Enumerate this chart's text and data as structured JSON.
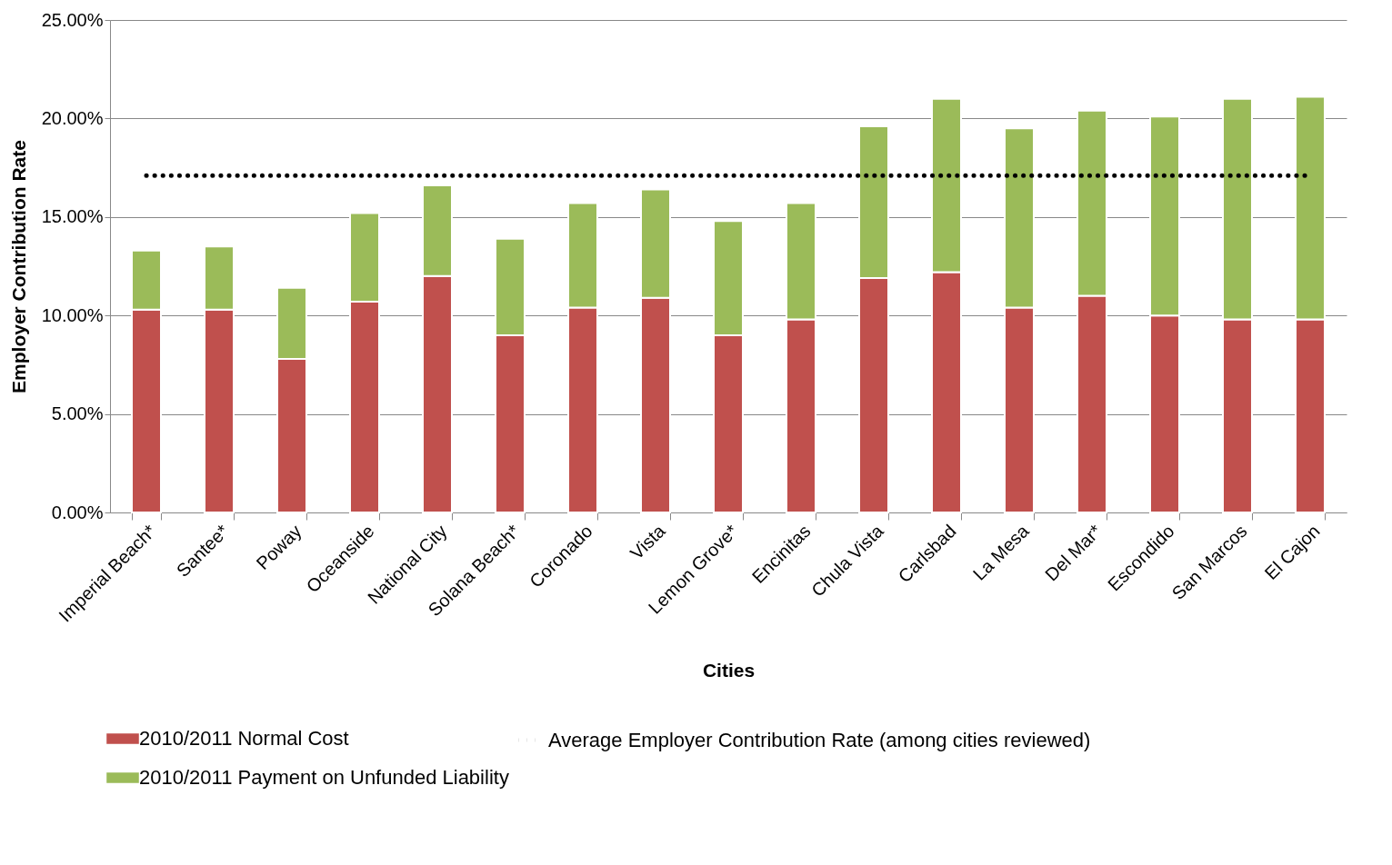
{
  "chart_data": {
    "type": "bar",
    "stacked": true,
    "xlabel": "Cities",
    "ylabel": "Employer Contribution Rate",
    "categories": [
      "Imperial Beach*",
      "Santee*",
      "Poway",
      "Oceanside",
      "National City",
      "Solana Beach*",
      "Coronado",
      "Vista",
      "Lemon Grove*",
      "Encinitas",
      "Chula Vista",
      "Carlsbad",
      "La Mesa",
      "Del Mar*",
      "Escondido",
      "San Marcos",
      "El Cajon"
    ],
    "series": [
      {
        "name": "2010/2011 Normal Cost",
        "color": "#c0504d",
        "values": [
          10.3,
          10.3,
          7.8,
          10.7,
          12.0,
          9.0,
          10.4,
          10.9,
          9.0,
          9.8,
          11.9,
          12.2,
          10.4,
          11.0,
          10.0,
          9.8,
          9.8
        ]
      },
      {
        "name": "2010/2011 Payment on Unfunded Liability",
        "color": "#9bbb59",
        "values": [
          3.0,
          3.2,
          3.6,
          4.5,
          4.6,
          4.9,
          5.3,
          5.5,
          5.8,
          5.9,
          7.7,
          8.8,
          9.1,
          9.4,
          10.1,
          11.2,
          11.3
        ]
      },
      {
        "name": "Average Employer Contribution Rate (among cities reviewed)",
        "type": "line",
        "color": "#000000",
        "line_style": "dotted",
        "marker": "none",
        "values": [
          17.1,
          17.1,
          17.1,
          17.1,
          17.1,
          17.1,
          17.1,
          17.1,
          17.1,
          17.1,
          17.1,
          17.1,
          17.1,
          17.1,
          17.1,
          17.1,
          17.1
        ]
      }
    ],
    "ylim": [
      0,
      25
    ],
    "yticks": [
      {
        "value": 0,
        "label": "0.00%"
      },
      {
        "value": 5,
        "label": "5.00%"
      },
      {
        "value": 10,
        "label": "10.00%"
      },
      {
        "value": 15,
        "label": "15.00%"
      },
      {
        "value": 20,
        "label": "20.00%"
      },
      {
        "value": 25,
        "label": "25.00%"
      }
    ],
    "grid": "y",
    "legend": "bottom"
  }
}
